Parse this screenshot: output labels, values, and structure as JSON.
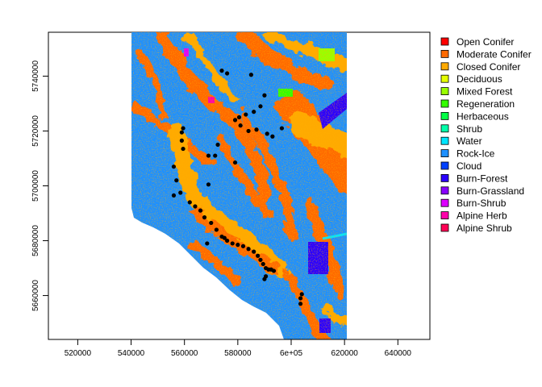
{
  "map": {
    "x_ticks": [
      "520000",
      "540000",
      "560000",
      "580000",
      "6e+05",
      "620000",
      "640000"
    ],
    "x_tick_values": [
      520000,
      540000,
      560000,
      580000,
      600000,
      620000,
      640000
    ],
    "y_ticks": [
      "5660000",
      "5680000",
      "5700000",
      "5720000",
      "5740000"
    ],
    "y_tick_values": [
      5660000,
      5680000,
      5700000,
      5720000,
      5740000
    ],
    "xlim": [
      509000,
      652000
    ],
    "ylim": [
      5644000,
      5756000
    ],
    "raster_extent": {
      "xmin": 540500,
      "xmax": 620000,
      "ymin": 5644000,
      "ymax": 5756000
    },
    "legend": [
      {
        "label": "Open Conifer",
        "color": "#ff0000"
      },
      {
        "label": "Moderate Conifer",
        "color": "#ff6a00"
      },
      {
        "label": "Closed Conifer",
        "color": "#ffaa00"
      },
      {
        "label": "Deciduous",
        "color": "#e5ff00"
      },
      {
        "label": "Mixed Forest",
        "color": "#99ff00"
      },
      {
        "label": "Regeneration",
        "color": "#33ff00"
      },
      {
        "label": "Herbaceous",
        "color": "#00ff44"
      },
      {
        "label": "Shrub",
        "color": "#00ffaa"
      },
      {
        "label": "Water",
        "color": "#00e5ff"
      },
      {
        "label": "Rock-Ice",
        "color": "#1e90ff"
      },
      {
        "label": "Cloud",
        "color": "#0040ff"
      },
      {
        "label": "Burn-Forest",
        "color": "#2a00ff"
      },
      {
        "label": "Burn-Grassland",
        "color": "#8800ff"
      },
      {
        "label": "Burn-Shrub",
        "color": "#dd00ff"
      },
      {
        "label": "Alpine Herb",
        "color": "#ff00aa"
      },
      {
        "label": "Alpine Shrub",
        "color": "#ff0055"
      }
    ],
    "points": [
      [
        574000,
        5742000
      ],
      [
        576000,
        5741000
      ],
      [
        585000,
        5740500
      ],
      [
        590000,
        5733000
      ],
      [
        588500,
        5729000
      ],
      [
        586000,
        5727000
      ],
      [
        583000,
        5726000
      ],
      [
        580500,
        5725000
      ],
      [
        579000,
        5724000
      ],
      [
        581000,
        5722000
      ],
      [
        584000,
        5720000
      ],
      [
        587000,
        5720500
      ],
      [
        591000,
        5719000
      ],
      [
        593000,
        5718000
      ],
      [
        596500,
        5721000
      ],
      [
        559500,
        5721000
      ],
      [
        559000,
        5719500
      ],
      [
        559000,
        5716500
      ],
      [
        559500,
        5713500
      ],
      [
        569000,
        5711000
      ],
      [
        571500,
        5711000
      ],
      [
        572500,
        5715000
      ],
      [
        579000,
        5708500
      ],
      [
        556000,
        5707000
      ],
      [
        557000,
        5702000
      ],
      [
        558500,
        5697500
      ],
      [
        556000,
        5696500
      ],
      [
        569000,
        5700500
      ],
      [
        562000,
        5694000
      ],
      [
        564000,
        5692500
      ],
      [
        566000,
        5691000
      ],
      [
        567500,
        5688500
      ],
      [
        570000,
        5686500
      ],
      [
        572000,
        5684000
      ],
      [
        574000,
        5681500
      ],
      [
        576000,
        5680000
      ],
      [
        578000,
        5679000
      ],
      [
        580000,
        5678500
      ],
      [
        582000,
        5678000
      ],
      [
        584000,
        5677000
      ],
      [
        586000,
        5676000
      ],
      [
        587500,
        5674500
      ],
      [
        588500,
        5673000
      ],
      [
        589500,
        5671500
      ],
      [
        590500,
        5670000
      ],
      [
        591500,
        5669500
      ],
      [
        592500,
        5669500
      ],
      [
        593500,
        5669000
      ],
      [
        590500,
        5667000
      ],
      [
        590000,
        5666000
      ],
      [
        568500,
        5679000
      ],
      [
        575000,
        5681000
      ],
      [
        604000,
        5660500
      ],
      [
        603500,
        5659000
      ],
      [
        603500,
        5657000
      ]
    ],
    "bg_color": "#1e90ff",
    "point_color": "#000000"
  }
}
